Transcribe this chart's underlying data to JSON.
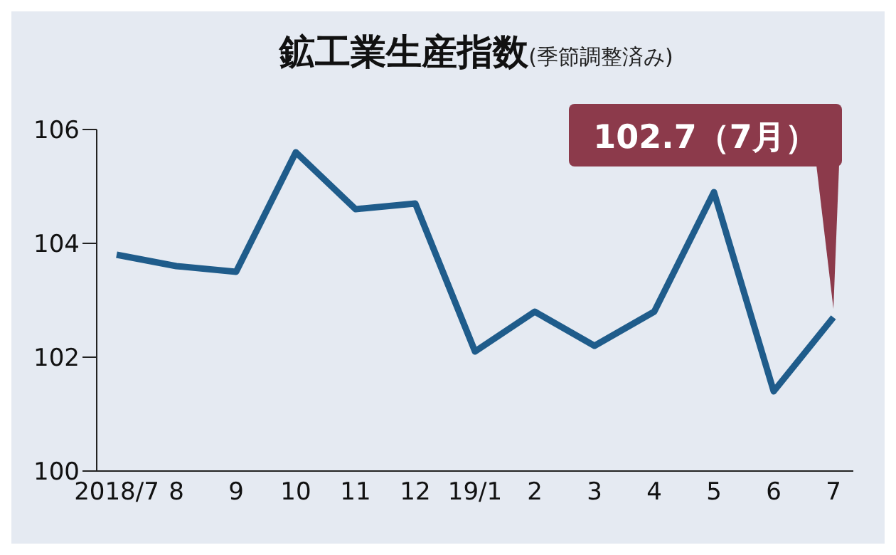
{
  "chart_data": {
    "type": "line",
    "title": "鉱工業生産指数",
    "subtitle": "(季節調整済み)",
    "categories": [
      "2018/7",
      "8",
      "9",
      "10",
      "11",
      "12",
      "19/1",
      "2",
      "3",
      "4",
      "5",
      "6",
      "7"
    ],
    "series": [
      {
        "color": "#1f5c8b",
        "values": [
          103.8,
          103.6,
          103.5,
          105.6,
          104.6,
          104.7,
          102.1,
          102.8,
          102.2,
          102.8,
          104.9,
          101.4,
          102.7
        ]
      }
    ],
    "ylim": [
      100,
      106
    ],
    "yticks": [
      100,
      102,
      104,
      106
    ],
    "grid": false,
    "legend": false,
    "marker": "none",
    "line_style": "solid",
    "annotations": [
      {
        "text": "102.7（7月）",
        "x": "7",
        "y": 102.7
      }
    ]
  }
}
